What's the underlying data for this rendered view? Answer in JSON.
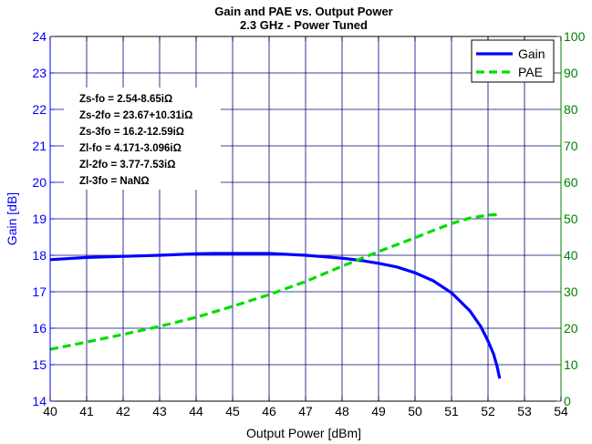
{
  "chart_data": {
    "type": "line",
    "title": "Gain and PAE vs. Output Power",
    "subtitle": "2.3 GHz - Power Tuned",
    "xlabel": "Output Power [dBm]",
    "ylabel_left": "Gain [dB]",
    "ylabel_right": "",
    "xlim": [
      40,
      54
    ],
    "ylim_left": [
      14,
      24
    ],
    "ylim_right": [
      0,
      100
    ],
    "x_ticks": [
      "40",
      "41",
      "42",
      "43",
      "44",
      "45",
      "46",
      "47",
      "48",
      "49",
      "50",
      "51",
      "52",
      "53",
      "54"
    ],
    "y_left_ticks": [
      "14",
      "15",
      "16",
      "17",
      "18",
      "19",
      "20",
      "21",
      "22",
      "23",
      "24"
    ],
    "y_right_ticks": [
      "0",
      "10",
      "20",
      "30",
      "40",
      "50",
      "60",
      "70",
      "80",
      "90",
      "100"
    ],
    "grid": true,
    "legend_position": "top-right",
    "colors": {
      "left_axis": "#0000ff",
      "right_axis": "#008000",
      "gain": "#0000ff",
      "pae": "#00dd00",
      "grid": "#000080"
    },
    "series": [
      {
        "name": "Gain",
        "axis": "left",
        "style": "solid",
        "x": [
          40,
          41,
          42,
          43,
          44,
          44.5,
          45,
          46,
          47,
          48,
          48.5,
          49,
          49.5,
          50,
          50.5,
          51,
          51.5,
          51.8,
          52.0,
          52.15,
          52.25,
          52.32
        ],
        "y": [
          17.88,
          17.94,
          17.97,
          18.0,
          18.04,
          18.05,
          18.05,
          18.05,
          18.0,
          17.92,
          17.86,
          17.78,
          17.68,
          17.52,
          17.3,
          16.97,
          16.48,
          16.05,
          15.65,
          15.3,
          14.95,
          14.62
        ]
      },
      {
        "name": "PAE",
        "axis": "right",
        "style": "dashed",
        "x": [
          40,
          41,
          42,
          43,
          44,
          45,
          46,
          47,
          48,
          49,
          50,
          50.5,
          51,
          51.5,
          52,
          52.3
        ],
        "y": [
          14.2,
          16.2,
          18.3,
          20.5,
          23.0,
          26.0,
          29.2,
          32.8,
          37.0,
          41.0,
          44.8,
          46.8,
          48.7,
          50.2,
          51.0,
          51.2
        ]
      }
    ],
    "annotations": [
      "Zs-fo = 2.54-8.65iΩ",
      "Zs-2fo = 23.67+10.31iΩ",
      "Zs-3fo = 16.2-12.59iΩ",
      "Zl-fo = 4.171-3.096iΩ",
      "Zl-2fo = 3.77-7.53iΩ",
      "Zl-3fo = NaNΩ"
    ]
  }
}
